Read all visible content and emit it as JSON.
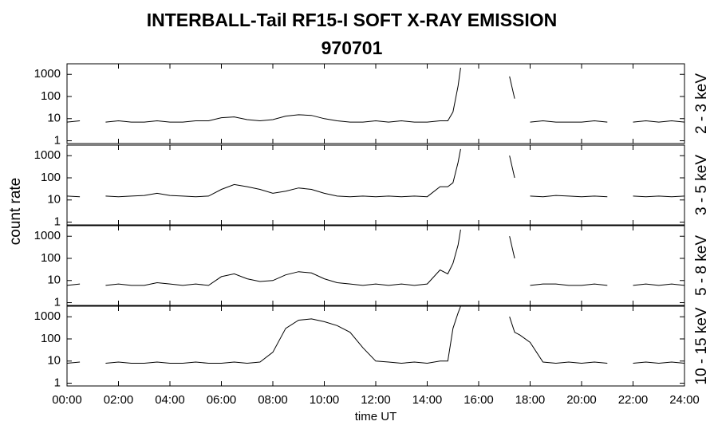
{
  "figure": {
    "title": "INTERBALL-Tail RF15-I SOFT X-RAY EMISSION",
    "subtitle": "970701",
    "ylabel": "count rate",
    "xlabel": "time UT"
  },
  "chart_data": [
    {
      "type": "line",
      "label": "2 - 3 keV",
      "color": "#000000",
      "log": true,
      "xlim": [
        0,
        24
      ],
      "ylim": [
        0.75,
        3000
      ],
      "yticks": [
        1,
        10,
        100,
        1000
      ],
      "x": [
        0,
        0.5,
        1,
        1.5,
        2,
        2.5,
        3,
        3.5,
        4,
        4.5,
        5,
        5.5,
        6,
        6.5,
        7,
        7.5,
        8,
        8.5,
        9,
        9.5,
        10,
        10.5,
        11,
        11.5,
        12,
        12.5,
        13,
        13.5,
        14,
        14.5,
        14.8,
        15,
        15.2,
        15.3,
        16,
        17.2,
        17.4,
        17.6,
        18,
        18.5,
        19,
        19.5,
        20,
        20.5,
        21,
        21.5,
        22,
        22.5,
        23,
        23.5,
        24
      ],
      "values": [
        7,
        8,
        null,
        7,
        8,
        7,
        7,
        8,
        7,
        7,
        8,
        8,
        11,
        12,
        9,
        8,
        9,
        13,
        15,
        14,
        10,
        8,
        7,
        7,
        8,
        7,
        8,
        7,
        7,
        8,
        8,
        20,
        300,
        2000,
        null,
        800,
        80,
        null,
        7,
        8,
        7,
        7,
        7,
        8,
        7,
        null,
        7,
        8,
        7,
        8,
        7
      ]
    },
    {
      "type": "line",
      "label": "3 - 5 keV",
      "color": "#000000",
      "log": true,
      "xlim": [
        0,
        24
      ],
      "ylim": [
        0.75,
        3000
      ],
      "yticks": [
        1,
        10,
        100,
        1000
      ],
      "x": [
        0,
        0.5,
        1,
        1.5,
        2,
        2.5,
        3,
        3.5,
        4,
        4.5,
        5,
        5.5,
        6,
        6.5,
        7,
        7.5,
        8,
        8.5,
        9,
        9.5,
        10,
        10.5,
        11,
        11.5,
        12,
        12.5,
        13,
        13.5,
        14,
        14.5,
        14.8,
        15,
        15.2,
        15.3,
        16,
        17.2,
        17.4,
        17.6,
        18,
        18.5,
        19,
        19.5,
        20,
        20.5,
        21,
        21.5,
        22,
        22.5,
        23,
        23.5,
        24
      ],
      "values": [
        15,
        14,
        null,
        15,
        14,
        15,
        16,
        20,
        16,
        15,
        14,
        15,
        30,
        50,
        40,
        30,
        20,
        25,
        35,
        30,
        20,
        15,
        14,
        15,
        14,
        15,
        14,
        15,
        14,
        40,
        40,
        60,
        500,
        2000,
        null,
        1000,
        100,
        null,
        15,
        14,
        16,
        15,
        14,
        15,
        14,
        null,
        15,
        14,
        15,
        14,
        15
      ]
    },
    {
      "type": "line",
      "label": "5 - 8 keV",
      "color": "#000000",
      "log": true,
      "xlim": [
        0,
        24
      ],
      "ylim": [
        0.75,
        3000
      ],
      "yticks": [
        1,
        10,
        100,
        1000
      ],
      "x": [
        0,
        0.5,
        1,
        1.5,
        2,
        2.5,
        3,
        3.5,
        4,
        4.5,
        5,
        5.5,
        6,
        6.5,
        7,
        7.5,
        8,
        8.5,
        9,
        9.5,
        10,
        10.5,
        11,
        11.5,
        12,
        12.5,
        13,
        13.5,
        14,
        14.5,
        14.8,
        15,
        15.2,
        15.3,
        16,
        17.2,
        17.4,
        17.6,
        18,
        18.5,
        19,
        19.5,
        20,
        20.5,
        21,
        21.5,
        22,
        22.5,
        23,
        23.5,
        24
      ],
      "values": [
        6,
        7,
        null,
        6,
        7,
        6,
        6,
        8,
        7,
        6,
        7,
        6,
        15,
        20,
        12,
        9,
        10,
        18,
        25,
        22,
        12,
        8,
        7,
        6,
        7,
        6,
        7,
        6,
        7,
        30,
        20,
        60,
        400,
        2000,
        null,
        1000,
        100,
        null,
        6,
        7,
        7,
        6,
        6,
        7,
        6,
        null,
        6,
        7,
        6,
        7,
        6
      ]
    },
    {
      "type": "line",
      "label": "10 - 15 keV",
      "color": "#000000",
      "log": true,
      "xlim": [
        0,
        24
      ],
      "ylim": [
        0.75,
        3000
      ],
      "yticks": [
        1,
        10,
        100,
        1000
      ],
      "xticks": [
        {
          "value": 0,
          "label": "00:00"
        },
        {
          "value": 2,
          "label": "02:00"
        },
        {
          "value": 4,
          "label": "04:00"
        },
        {
          "value": 6,
          "label": "06:00"
        },
        {
          "value": 8,
          "label": "08:00"
        },
        {
          "value": 10,
          "label": "10:00"
        },
        {
          "value": 12,
          "label": "12:00"
        },
        {
          "value": 14,
          "label": "14:00"
        },
        {
          "value": 16,
          "label": "16:00"
        },
        {
          "value": 18,
          "label": "18:00"
        },
        {
          "value": 20,
          "label": "20:00"
        },
        {
          "value": 22,
          "label": "22:00"
        },
        {
          "value": 24,
          "label": "24:00"
        }
      ],
      "x": [
        0,
        0.5,
        1,
        1.5,
        2,
        2.5,
        3,
        3.5,
        4,
        4.5,
        5,
        5.5,
        6,
        6.5,
        7,
        7.5,
        8,
        8.5,
        9,
        9.5,
        10,
        10.5,
        11,
        11.5,
        12,
        12.5,
        13,
        13.5,
        14,
        14.5,
        14.8,
        15,
        15.2,
        15.3,
        16,
        17.2,
        17.4,
        17.6,
        18,
        18.5,
        19,
        19.5,
        20,
        20.5,
        21,
        21.5,
        22,
        22.5,
        23,
        23.5,
        24
      ],
      "values": [
        8,
        9,
        null,
        8,
        9,
        8,
        8,
        9,
        8,
        8,
        9,
        8,
        8,
        9,
        8,
        9,
        25,
        300,
        700,
        800,
        600,
        400,
        200,
        40,
        10,
        9,
        8,
        9,
        8,
        10,
        10,
        300,
        1500,
        3000,
        null,
        1000,
        200,
        150,
        70,
        9,
        8,
        9,
        8,
        9,
        8,
        null,
        8,
        9,
        8,
        9,
        8
      ]
    }
  ]
}
